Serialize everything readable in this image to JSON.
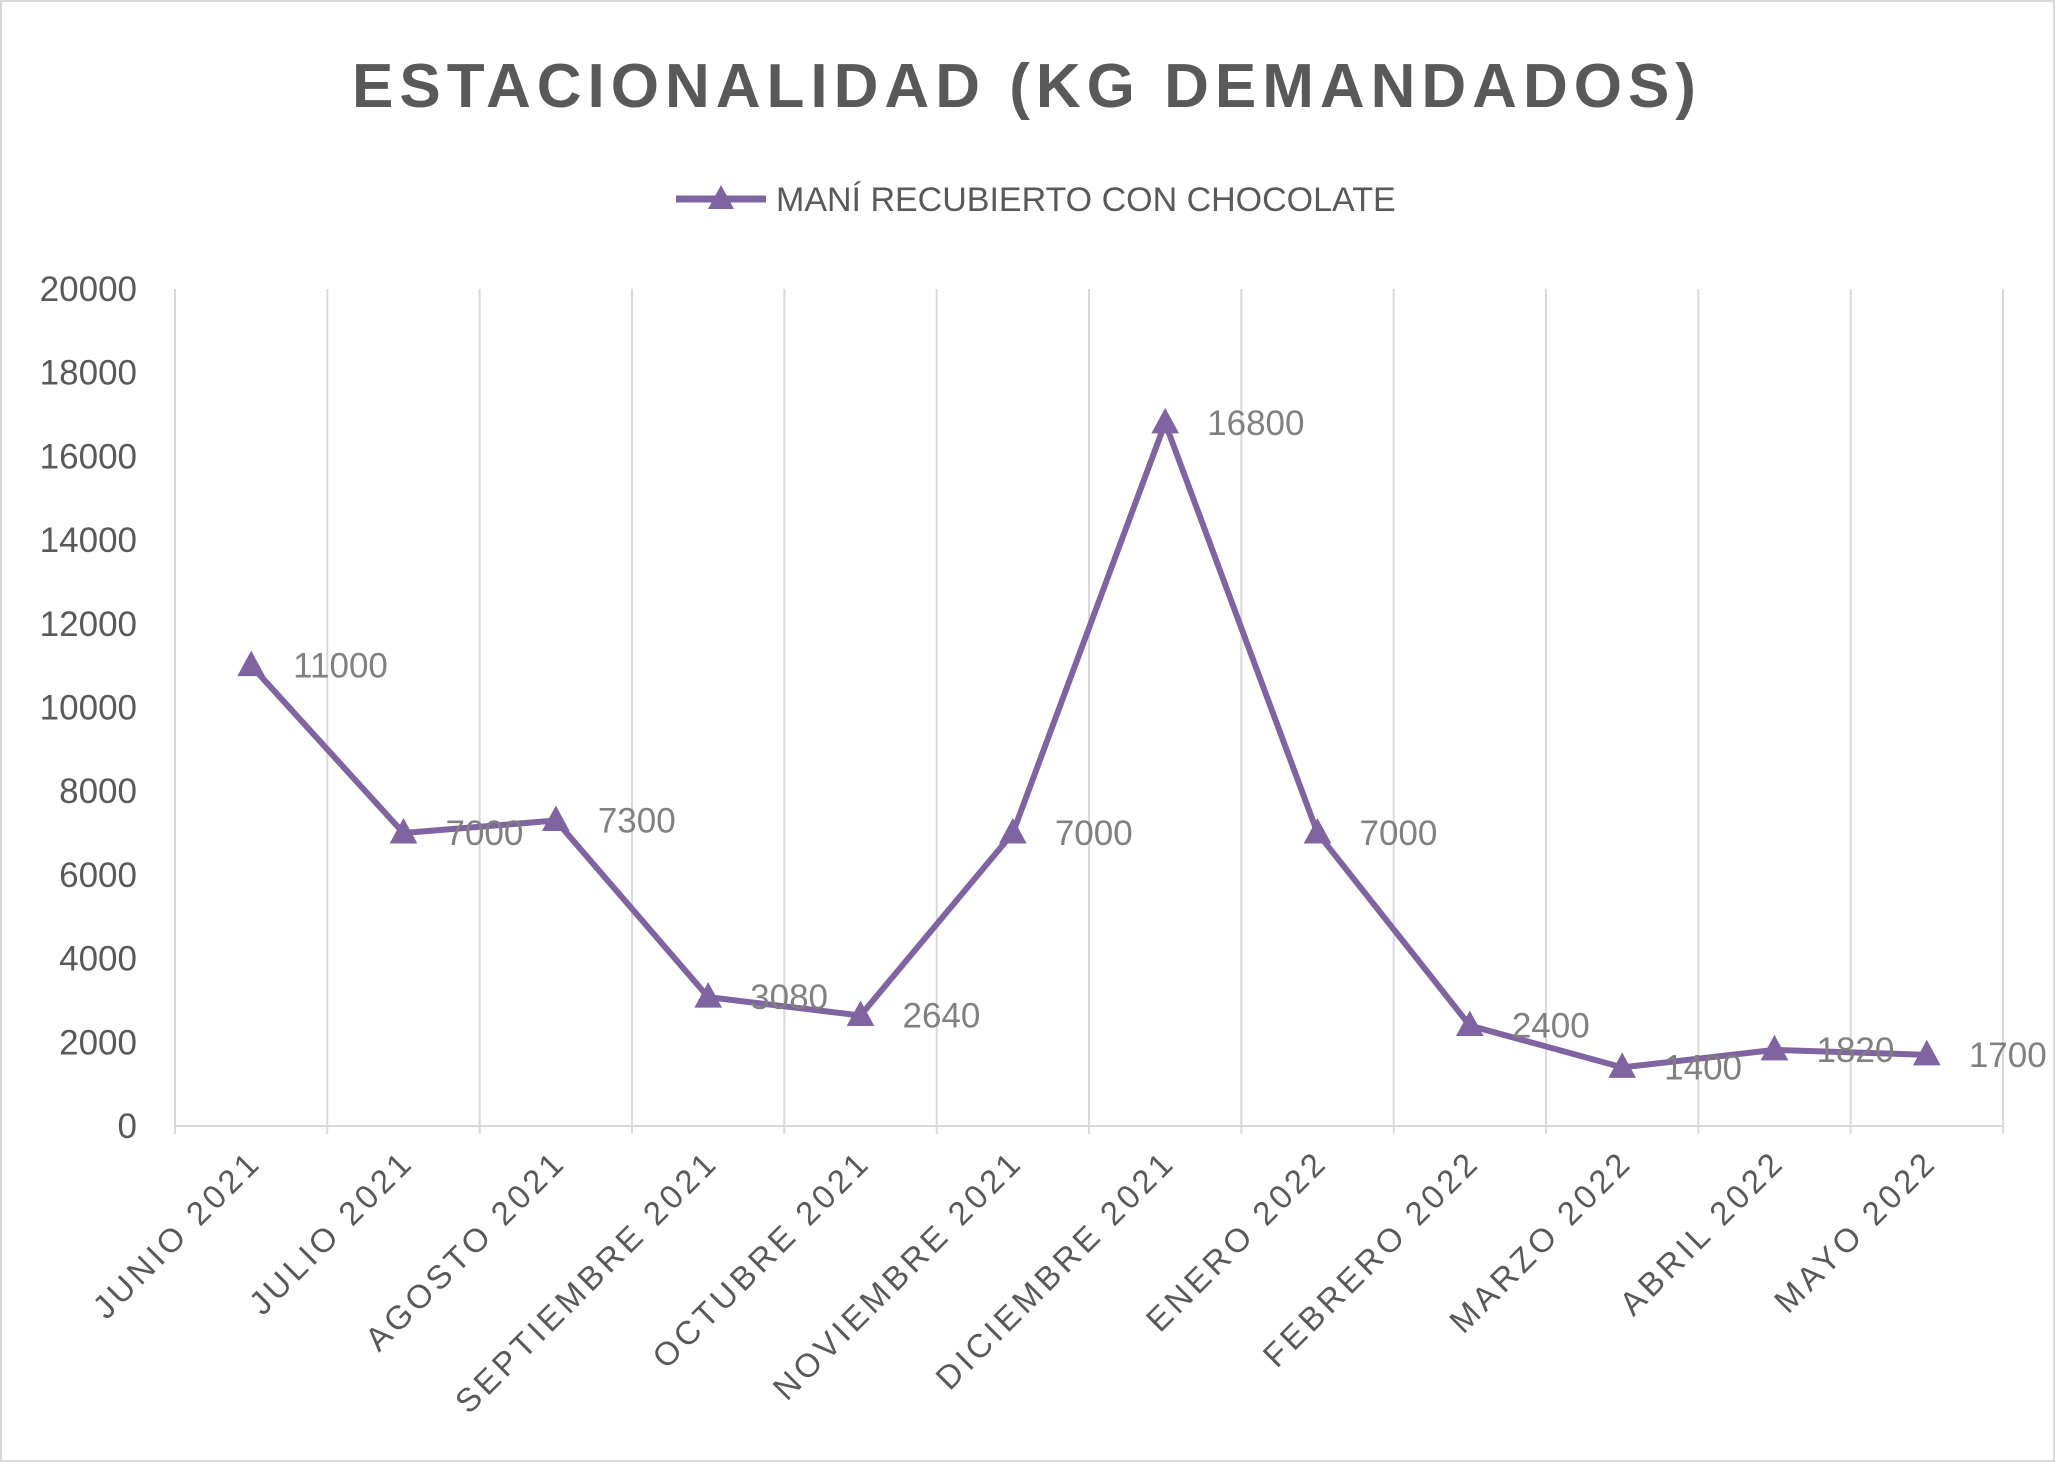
{
  "chart_data": {
    "type": "line",
    "title": "ESTACIONALIDAD (KG DEMANDADOS)",
    "categories": [
      "JUNIO 2021",
      "JULIO 2021",
      "AGOSTO 2021",
      "SEPTIEMBRE 2021",
      "OCTUBRE 2021",
      "NOVIEMBRE 2021",
      "DICIEMBRE 2021",
      "ENERO 2022",
      "FEBRERO 2022",
      "MARZO 2022",
      "ABRIL 2022",
      "MAYO 2022"
    ],
    "series": [
      {
        "name": "MANÍ RECUBIERTO CON CHOCOLATE",
        "values": [
          11000,
          7000,
          7300,
          3080,
          2640,
          7000,
          16800,
          7000,
          2400,
          1400,
          1820,
          1700
        ],
        "color": "#8064A2",
        "marker": "triangle"
      }
    ],
    "ylim": [
      0,
      20000
    ],
    "yticks": [
      0,
      2000,
      4000,
      6000,
      8000,
      10000,
      12000,
      14000,
      16000,
      18000,
      20000
    ],
    "xlabel": "",
    "ylabel": "",
    "grid": "vertical",
    "legend": "top-center",
    "data_labels": true
  }
}
